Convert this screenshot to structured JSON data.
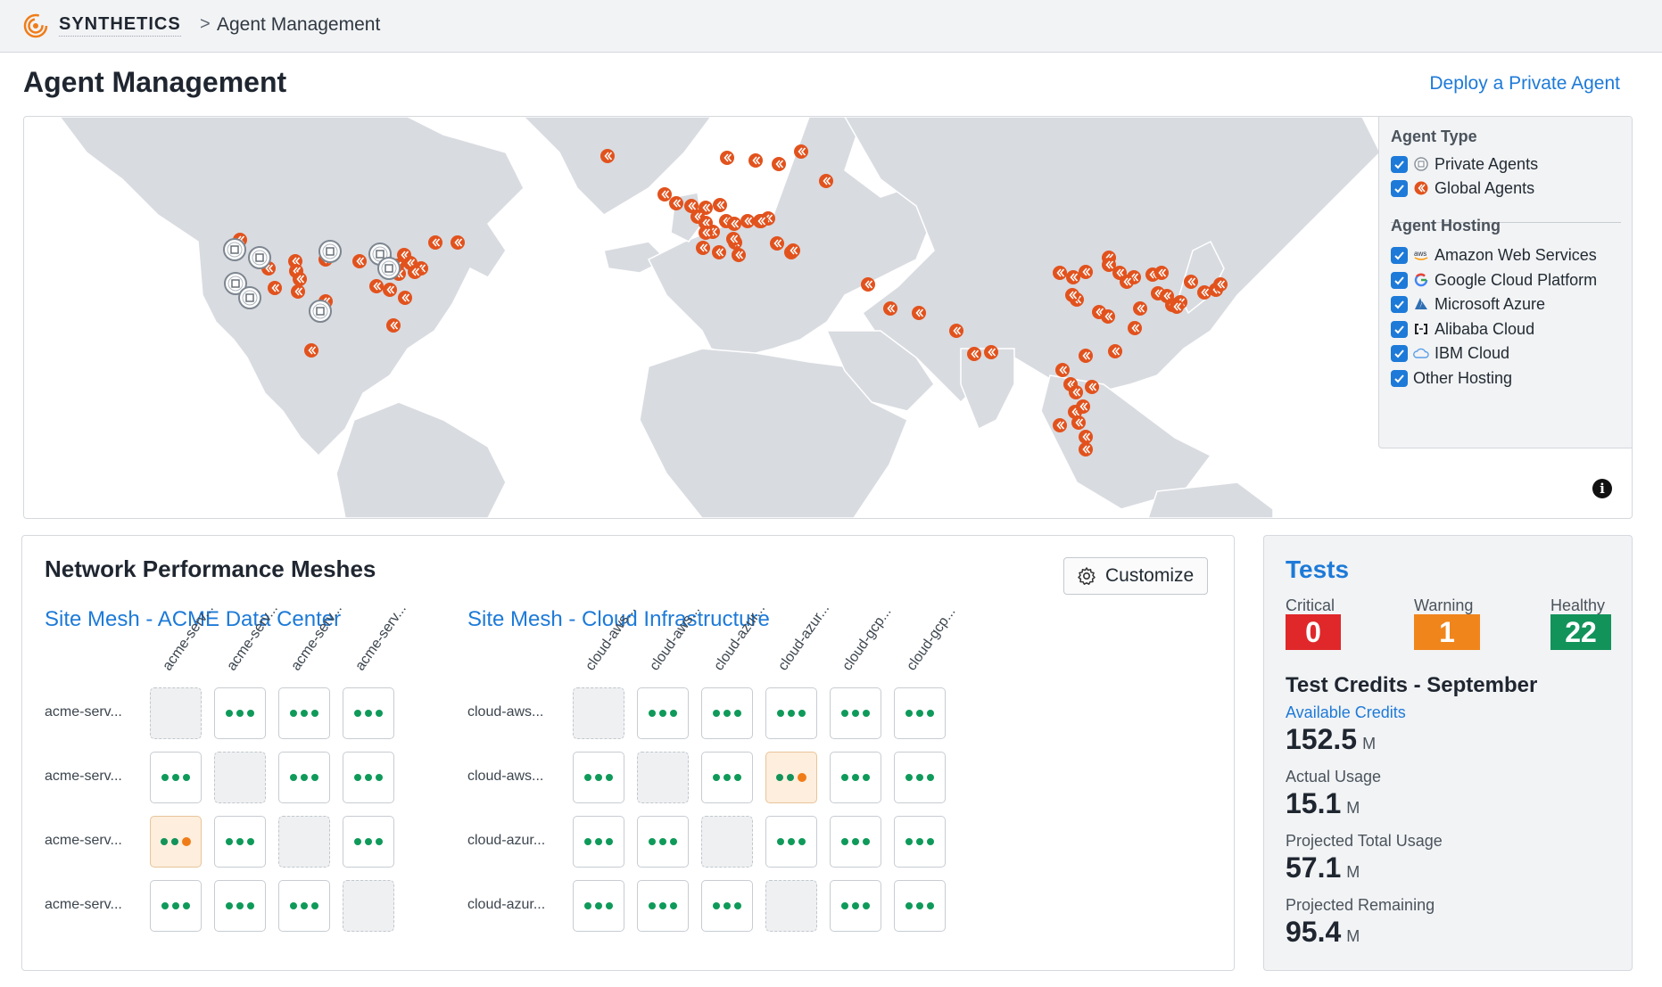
{
  "header": {
    "brand": "SYNTHETICS",
    "breadcrumb_separator": ">",
    "breadcrumb_current": "Agent Management"
  },
  "page": {
    "title": "Agent Management",
    "deploy_link": "Deploy a Private Agent"
  },
  "legend": {
    "agent_type_title": "Agent Type",
    "agent_types": [
      {
        "label": "Private Agents",
        "checked": true,
        "icon": "private-agent-icon"
      },
      {
        "label": "Global Agents",
        "checked": true,
        "icon": "global-agent-icon"
      }
    ],
    "agent_hosting_title": "Agent Hosting",
    "hosting": [
      {
        "label": "Amazon Web Services",
        "checked": true,
        "icon": "aws-icon"
      },
      {
        "label": "Google Cloud Platform",
        "checked": true,
        "icon": "google-cloud-icon"
      },
      {
        "label": "Microsoft Azure",
        "checked": true,
        "icon": "azure-icon"
      },
      {
        "label": "Alibaba Cloud",
        "checked": true,
        "icon": "alibaba-cloud-icon"
      },
      {
        "label": "IBM Cloud",
        "checked": true,
        "icon": "ibm-cloud-icon"
      },
      {
        "label": "Other Hosting",
        "checked": true,
        "icon": ""
      }
    ]
  },
  "meshes": {
    "title": "Network Performance Meshes",
    "customize_label": "Customize",
    "site_mesh_acme": {
      "title": "Site Mesh - ACME Data Center",
      "columns": [
        "acme-serv...",
        "acme-serv...",
        "acme-serv...",
        "acme-serv..."
      ],
      "rows": [
        "acme-serv...",
        "acme-serv...",
        "acme-serv...",
        "acme-serv..."
      ],
      "cells": [
        [
          "self",
          "healthy",
          "healthy",
          "healthy"
        ],
        [
          "healthy",
          "self",
          "healthy",
          "healthy"
        ],
        [
          "warning",
          "healthy",
          "self",
          "healthy"
        ],
        [
          "healthy",
          "healthy",
          "healthy",
          "self"
        ]
      ]
    },
    "site_mesh_cloud": {
      "title": "Site Mesh - Cloud Infrastructure",
      "columns": [
        "cloud-aws...",
        "cloud-aws...",
        "cloud-azur...",
        "cloud-azur...",
        "cloud-gcp...",
        "cloud-gcp..."
      ],
      "rows": [
        "cloud-aws...",
        "cloud-aws...",
        "cloud-azur...",
        "cloud-azur..."
      ],
      "cells": [
        [
          "self",
          "healthy",
          "healthy",
          "healthy",
          "healthy",
          "healthy"
        ],
        [
          "healthy",
          "self",
          "healthy",
          "warning",
          "healthy",
          "healthy"
        ],
        [
          "healthy",
          "healthy",
          "self",
          "healthy",
          "healthy",
          "healthy"
        ],
        [
          "healthy",
          "healthy",
          "healthy",
          "self",
          "healthy",
          "healthy"
        ]
      ]
    }
  },
  "tests": {
    "title": "Tests",
    "critical_label": "Critical",
    "critical_count": "0",
    "warning_label": "Warning",
    "warning_count": "1",
    "healthy_label": "Healthy",
    "healthy_count": "22",
    "credits_title": "Test Credits - September",
    "available_label": "Available Credits",
    "available_value": "152.5",
    "actual_label": "Actual Usage",
    "actual_value": "15.1",
    "projected_total_label": "Projected Total Usage",
    "projected_total_value": "57.1",
    "projected_remaining_label": "Projected Remaining",
    "projected_remaining_value": "95.4",
    "unit": "M"
  },
  "colors": {
    "accent": "#1d7ad8",
    "global_agent": "#e2521d",
    "critical": "#e0282a",
    "warning": "#f0851c",
    "healthy": "#12935a",
    "land": "#d8dbe0"
  }
}
